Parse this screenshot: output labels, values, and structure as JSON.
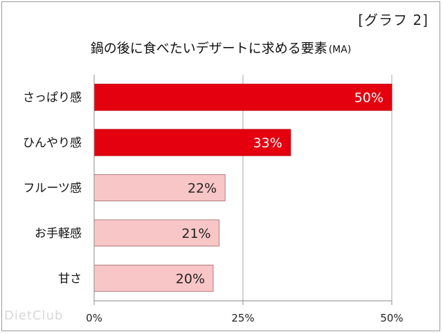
{
  "header": {
    "tag": "[グラフ 2]",
    "title": "鍋の後に食べたいデザートに求める要素",
    "title_suffix": "(MA)"
  },
  "watermark": "DietClub",
  "chart_data": {
    "type": "bar",
    "orientation": "horizontal",
    "categories": [
      "さっぱり感",
      "ひんやり感",
      "フルーツ感",
      "お手軽感",
      "甘さ"
    ],
    "values": [
      50,
      33,
      22,
      21,
      20
    ],
    "value_labels": [
      "50%",
      "33%",
      "22%",
      "21%",
      "20%"
    ],
    "bar_colors": [
      "#e4000f",
      "#e4000f",
      "#f9c6c7",
      "#f9c6c7",
      "#f9c6c7"
    ],
    "label_colors": [
      "#ffffff",
      "#ffffff",
      "#222222",
      "#222222",
      "#222222"
    ],
    "border_colors": [
      "#c0000c",
      "#c0000c",
      "#b07a7c",
      "#b07a7c",
      "#b07a7c"
    ],
    "xlim": [
      0,
      50
    ],
    "xticks": [
      0,
      25,
      50
    ],
    "xtick_labels": [
      "0%",
      "25%",
      "50%"
    ],
    "grid": true,
    "title": "鍋の後に食べたいデザートに求める要素",
    "xlabel": "",
    "ylabel": ""
  }
}
